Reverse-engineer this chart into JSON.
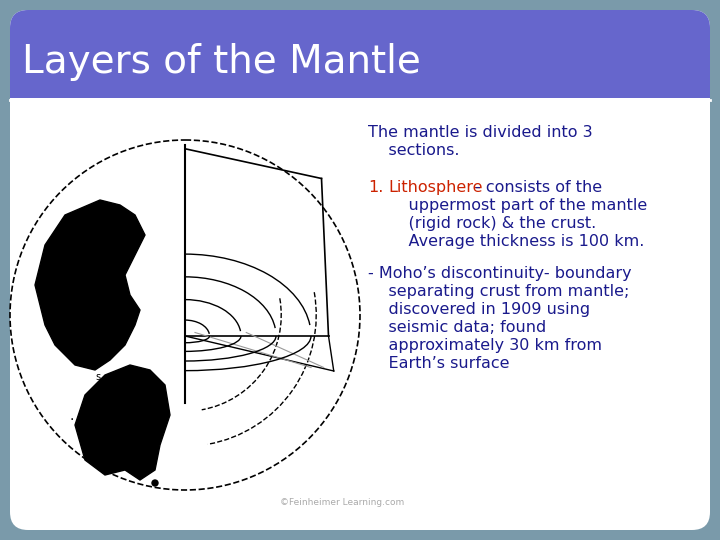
{
  "title": "Layers of the Mantle",
  "title_bg_color": "#6666cc",
  "title_text_color": "#ffffff",
  "slide_bg_color": "#ffffff",
  "slide_border_color": "#7a9aaa",
  "intro_line1": "The mantle is divided into 3",
  "intro_line2": "    sections.",
  "intro_color": "#1a1a8c",
  "item1_num": "1.",
  "item1_num_color": "#cc2200",
  "item1_label": "Lithosphere",
  "item1_label_color": "#cc2200",
  "item1_rest": "- consists of the",
  "item1_lines": [
    "    uppermost part of the mantle",
    "    (rigid rock) & the crust.",
    "    Average thickness is 100 km."
  ],
  "item1_color": "#1a1a8c",
  "item2_lines": [
    "- Moho’s discontinuity- boundary",
    "    separating crust from mantle;",
    "    discovered in 1909 using",
    "    seismic data; found",
    "    approximately 30 km from",
    "    Earth’s surface"
  ],
  "item2_color": "#1a1a8c",
  "watermark": "©Feinheimer Learning.com",
  "watermark_color": "#aaaaaa",
  "text_fontsize": 11.5,
  "title_fontsize": 28
}
